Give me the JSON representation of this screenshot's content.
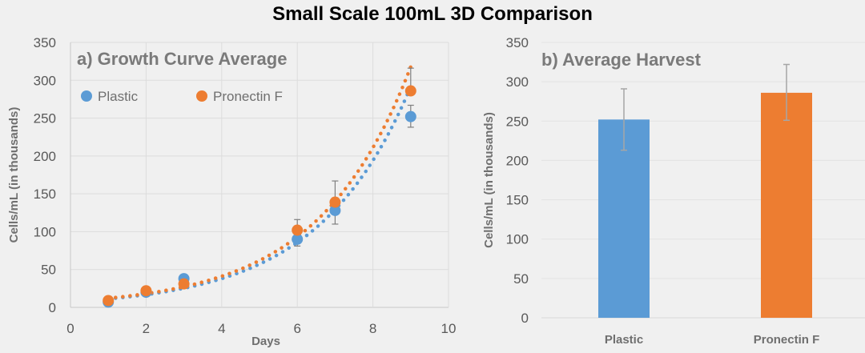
{
  "title": "Small Scale 100mL 3D Comparison",
  "colors": {
    "Plastic": "#5b9bd5",
    "Pronectin F": "#ed7d31",
    "grid": "#dcdcdc",
    "error": "#7f7f7f",
    "error_bar_b": "#a6a6a6"
  },
  "chart_data": [
    {
      "type": "scatter",
      "title": "a) Growth Curve Average",
      "xlabel": "Days",
      "ylabel": "Cells/mL (in thousands)",
      "xlim": [
        0,
        10
      ],
      "ylim": [
        0,
        350
      ],
      "xticks": [
        0,
        2,
        4,
        6,
        8,
        10
      ],
      "yticks": [
        0,
        50,
        100,
        150,
        200,
        250,
        300,
        350
      ],
      "grid": true,
      "legend_placement": "top-left",
      "trendline": "exponential, dotted",
      "series": [
        {
          "name": "Plastic",
          "x": [
            1,
            2,
            3,
            6,
            7,
            9
          ],
          "y": [
            7,
            20,
            38,
            90,
            128,
            252
          ],
          "error_low": [
            null,
            null,
            null,
            null,
            110,
            238
          ],
          "error_high": [
            null,
            null,
            null,
            null,
            null,
            267
          ]
        },
        {
          "name": "Pronectin F",
          "x": [
            1,
            2,
            3,
            6,
            7,
            9
          ],
          "y": [
            9,
            22,
            31,
            102,
            139,
            286
          ],
          "error_low": [
            null,
            null,
            null,
            81,
            null,
            null
          ],
          "error_high": [
            null,
            null,
            null,
            116,
            167,
            316
          ]
        }
      ]
    },
    {
      "type": "bar",
      "title": "b) Average Harvest",
      "xlabel": "",
      "ylabel": "Cells/mL (in thousands)",
      "categories": [
        "Plastic",
        "Pronectin F"
      ],
      "values": [
        252,
        286
      ],
      "error_low": [
        213,
        251
      ],
      "error_high": [
        291,
        322
      ],
      "ylim": [
        0,
        350
      ],
      "yticks": [
        0,
        50,
        100,
        150,
        200,
        250,
        300,
        350
      ],
      "grid": true
    }
  ]
}
